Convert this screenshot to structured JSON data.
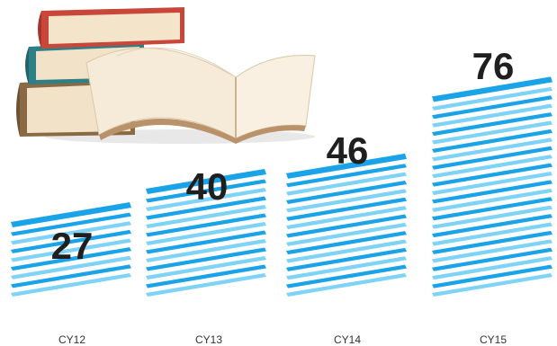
{
  "chart_data": {
    "type": "bar",
    "categories": [
      "CY12",
      "CY13",
      "CY14",
      "CY15"
    ],
    "values": [
      27,
      40,
      46,
      76
    ],
    "title": "",
    "xlabel": "",
    "ylabel": "",
    "ylim": [
      0,
      80
    ],
    "grid": false,
    "legend": "none",
    "bar_style": "stacked-paper-sheets",
    "decoration": "stack-of-books-icon"
  },
  "colors": {
    "sheet_light": "#7fd3f7",
    "sheet_dark": "#1aa3e8",
    "label": "#1f1f1f",
    "book_red": "#c9473a",
    "book_teal": "#2f7f86",
    "book_brown": "#8a6a45",
    "pages": "#f6ead8"
  }
}
